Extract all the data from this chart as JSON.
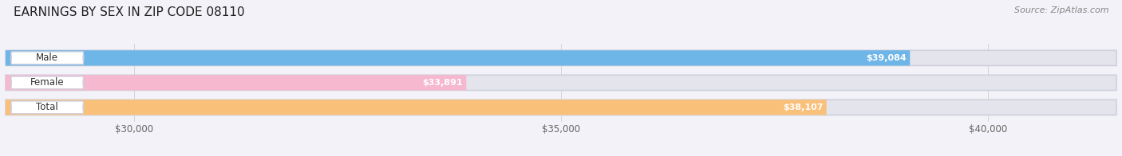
{
  "title": "EARNINGS BY SEX IN ZIP CODE 08110",
  "source": "Source: ZipAtlas.com",
  "categories": [
    "Male",
    "Female",
    "Total"
  ],
  "values": [
    39084,
    33891,
    38107
  ],
  "bar_colors": [
    "#6eb5e8",
    "#f5b8cf",
    "#f9c07a"
  ],
  "value_labels": [
    "$39,084",
    "$33,891",
    "$38,107"
  ],
  "xlim": [
    28500,
    41500
  ],
  "xticks": [
    30000,
    35000,
    40000
  ],
  "xtick_labels": [
    "$30,000",
    "$35,000",
    "$40,000"
  ],
  "background_color": "#f2f2f8",
  "bar_bg_color": "#e4e4ec",
  "bar_border_color": "#d0d0dc",
  "title_fontsize": 11,
  "source_fontsize": 8,
  "bar_height": 0.62,
  "figsize": [
    14.06,
    1.96
  ],
  "dpi": 100
}
